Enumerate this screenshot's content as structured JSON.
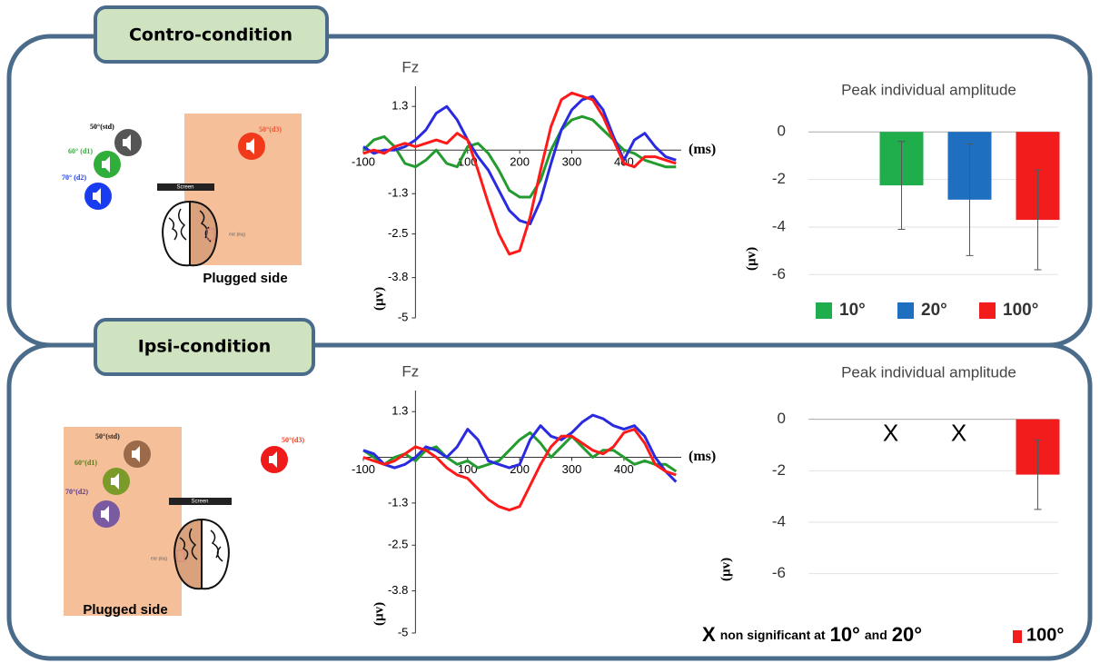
{
  "panels": [
    {
      "title": "Contro-condition",
      "speakers": [
        "50°(std)",
        "60° (d1)",
        "70° (d2)",
        "50°(d3)"
      ],
      "screen": "Screen",
      "ear_plug": "ear plug",
      "plugged_side": "Plugged side"
    },
    {
      "title": "Ipsi-condition",
      "speakers": [
        "50°(std)",
        "60°(d1)",
        "70°(d2)",
        "50°(d3)"
      ],
      "screen": "Screen",
      "ear_plug": "ear plug",
      "plugged_side": "Plugged side"
    }
  ],
  "chart_data": [
    {
      "type": "line",
      "title": "Fz",
      "x_label": "(ms)",
      "y_label": "(µv)",
      "x": [
        -100,
        -80,
        -60,
        -40,
        -20,
        0,
        20,
        40,
        60,
        80,
        100,
        120,
        140,
        160,
        180,
        200,
        220,
        240,
        260,
        280,
        300,
        320,
        340,
        360,
        380,
        400,
        420,
        440,
        460,
        480,
        500
      ],
      "series": [
        {
          "name": "10°",
          "color": "#239b2e",
          "values": [
            0,
            0.3,
            0.4,
            0.1,
            -0.4,
            -0.5,
            -0.3,
            0,
            -0.4,
            -0.5,
            0.1,
            0.2,
            -0.1,
            -0.6,
            -1.2,
            -1.4,
            -1.4,
            -0.9,
            0,
            0.6,
            0.9,
            1.0,
            0.9,
            0.6,
            0.3,
            0,
            -0.1,
            -0.3,
            -0.4,
            -0.5,
            -0.5
          ]
        },
        {
          "name": "20°",
          "color": "#2a2ae0",
          "values": [
            0.1,
            -0.1,
            0,
            0,
            0.1,
            0.3,
            0.6,
            1.1,
            1.3,
            0.9,
            0.3,
            -0.2,
            -0.6,
            -1.2,
            -1.8,
            -2.1,
            -2.2,
            -1.5,
            -0.4,
            0.6,
            1.2,
            1.5,
            1.6,
            1.2,
            0.4,
            -0.3,
            0.3,
            0.5,
            0.1,
            -0.2,
            -0.3
          ]
        },
        {
          "name": "100°",
          "color": "#ff1a1a",
          "values": [
            -0.1,
            0,
            -0.1,
            0.1,
            0.2,
            0.1,
            0.2,
            0.3,
            0.2,
            0.5,
            0.3,
            -0.6,
            -1.6,
            -2.5,
            -3.1,
            -3.0,
            -2.0,
            -0.6,
            0.7,
            1.5,
            1.7,
            1.6,
            1.5,
            1.0,
            0.3,
            -0.4,
            -0.5,
            -0.2,
            -0.2,
            -0.3,
            -0.4
          ]
        }
      ],
      "xlim": [
        -100,
        510
      ],
      "xticks": [
        -100,
        100,
        200,
        300,
        400
      ],
      "ylim": [
        -5,
        1.9
      ],
      "yticks": [
        1.3,
        -1.3,
        -2.5,
        -3.8,
        -5
      ]
    },
    {
      "type": "bar",
      "title": "Peak individual amplitude",
      "y_label": "(µv)",
      "categories": [
        "10°",
        "20°",
        "100°"
      ],
      "colors": [
        "#1fae4b",
        "#1f6fc0",
        "#f21c1c"
      ],
      "values": [
        -2.25,
        -2.85,
        -3.7
      ],
      "errors": [
        1.85,
        2.35,
        2.1
      ],
      "ylim": [
        -6.6,
        0.2
      ],
      "yticks": [
        0,
        -2,
        -4,
        -6
      ],
      "grid": true
    },
    {
      "type": "line",
      "title": "Fz",
      "x_label": "(ms)",
      "y_label": "(µv)",
      "x": [
        -100,
        -80,
        -60,
        -40,
        -20,
        0,
        20,
        40,
        60,
        80,
        100,
        120,
        140,
        160,
        180,
        200,
        220,
        240,
        260,
        280,
        300,
        320,
        340,
        360,
        380,
        400,
        420,
        440,
        460,
        480,
        500
      ],
      "series": [
        {
          "name": "10°",
          "color": "#239b2e",
          "values": [
            0.2,
            0,
            -0.2,
            0,
            0.1,
            -0.1,
            0.2,
            0.3,
            0,
            -0.2,
            -0.1,
            -0.3,
            -0.2,
            -0.1,
            0.2,
            0.5,
            0.7,
            0.4,
            0,
            0.3,
            0.6,
            0.3,
            0,
            0.2,
            0.2,
            0,
            -0.2,
            -0.1,
            -0.2,
            -0.2,
            -0.4
          ]
        },
        {
          "name": "20°",
          "color": "#2a2ae0",
          "values": [
            0.2,
            0.1,
            -0.2,
            -0.3,
            -0.2,
            0,
            0.3,
            0.2,
            0,
            0.3,
            0.8,
            0.5,
            -0.1,
            -0.2,
            -0.3,
            -0.2,
            0.5,
            0.9,
            0.6,
            0.5,
            0.7,
            1.0,
            1.2,
            1.1,
            0.9,
            0.8,
            0.9,
            0.6,
            0,
            -0.4,
            -0.7
          ]
        },
        {
          "name": "100°",
          "color": "#ff1a1a",
          "values": [
            0,
            -0.1,
            -0.2,
            -0.1,
            0.1,
            0.3,
            0.2,
            0,
            -0.3,
            -0.5,
            -0.6,
            -0.9,
            -1.2,
            -1.4,
            -1.5,
            -1.4,
            -0.8,
            -0.2,
            0.3,
            0.6,
            0.6,
            0.4,
            0.2,
            0.1,
            0.3,
            0.7,
            0.8,
            0.4,
            -0.2,
            -0.4,
            -0.5
          ]
        }
      ],
      "xlim": [
        -100,
        510
      ],
      "xticks": [
        -100,
        100,
        200,
        300,
        400
      ],
      "ylim": [
        -5,
        1.9
      ],
      "yticks": [
        1.3,
        -1.3,
        -2.5,
        -3.8,
        -5
      ]
    },
    {
      "type": "bar",
      "title": "Peak individual amplitude",
      "y_label": "(µv)",
      "categories": [
        "10°",
        "20°",
        "100°"
      ],
      "colors": [
        "#1fae4b",
        "#1f6fc0",
        "#f21c1c"
      ],
      "values": [
        null,
        null,
        -2.15
      ],
      "errors": [
        null,
        null,
        1.35
      ],
      "value_labels": [
        "X",
        "X",
        null
      ],
      "legend_note": {
        "text": "non significant at",
        "joiner": "and"
      },
      "ylim": [
        -7,
        0.2
      ],
      "yticks": [
        0,
        -2,
        -4,
        -6
      ],
      "grid": true
    }
  ]
}
